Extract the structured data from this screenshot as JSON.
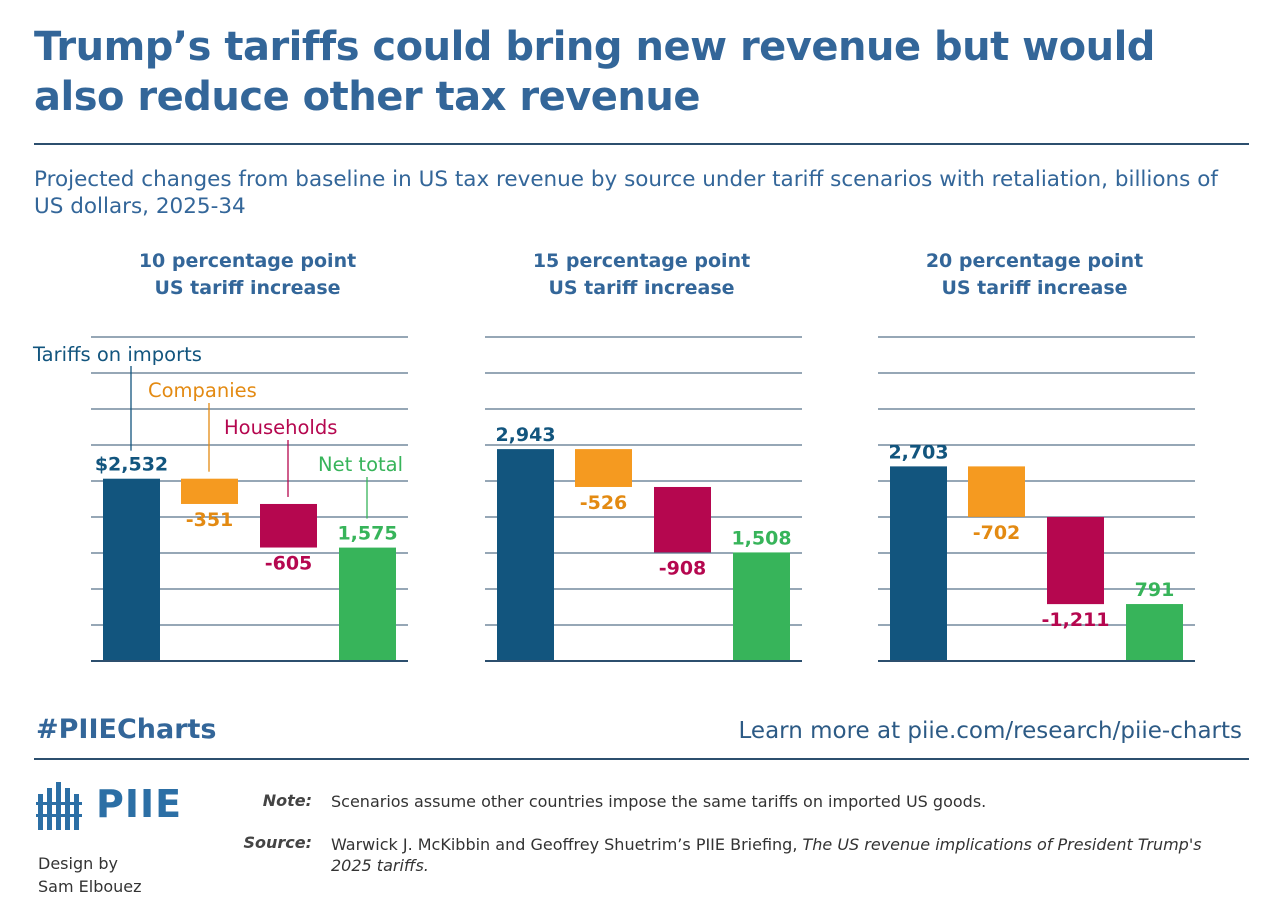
{
  "header": {
    "title": "Trump’s tariffs could bring new revenue but would also reduce other tax revenue",
    "subtitle": "Projected changes from baseline in US tax revenue by source under tariff scenarios with retaliation, billions of US dollars, 2025-34"
  },
  "colors": {
    "tariffs": "#12557e",
    "companies": "#f59a20",
    "households": "#b5074f",
    "net": "#37b45a",
    "gridline": "#2c4f6e",
    "title": "#336699"
  },
  "chart_data": [
    {
      "type": "waterfall",
      "title_line1": "10 percentage point",
      "title_line2": "US tariff increase",
      "categories": [
        "Tariffs on imports",
        "Companies",
        "Households",
        "Net total"
      ],
      "values": [
        2532,
        -351,
        -605,
        1575
      ],
      "labels": [
        "$2,532",
        "-351",
        "-605",
        "1,575"
      ],
      "ylim": [
        0,
        4500
      ],
      "gridlines": [
        500,
        1000,
        1500,
        2000,
        2500,
        3000,
        3500,
        4000,
        4500
      ]
    },
    {
      "type": "waterfall",
      "title_line1": "15 percentage point",
      "title_line2": "US tariff increase",
      "categories": [
        "Tariffs on imports",
        "Companies",
        "Households",
        "Net total"
      ],
      "values": [
        2943,
        -526,
        -908,
        1508
      ],
      "labels": [
        "2,943",
        "-526",
        "-908",
        "1,508"
      ],
      "ylim": [
        0,
        4500
      ],
      "gridlines": [
        500,
        1000,
        1500,
        2000,
        2500,
        3000,
        3500,
        4000,
        4500
      ]
    },
    {
      "type": "waterfall",
      "title_line1": "20 percentage point",
      "title_line2": "US tariff increase",
      "categories": [
        "Tariffs on imports",
        "Companies",
        "Households",
        "Net total"
      ],
      "values": [
        2703,
        -702,
        -1211,
        791
      ],
      "labels": [
        "2,703",
        "-702",
        "-1,211",
        "791"
      ],
      "ylim": [
        0,
        4500
      ],
      "gridlines": [
        500,
        1000,
        1500,
        2000,
        2500,
        3000,
        3500,
        4000,
        4500
      ]
    }
  ],
  "footer": {
    "hashtag": "#PIIECharts",
    "learn_more": "Learn more at piie.com/research/piie-charts",
    "logo_text": "PIIE",
    "credit_line1": "Design by",
    "credit_line2": "Sam Elbouez",
    "note_label": "Note:",
    "note_text": "Scenarios assume other countries impose the same tariffs on imported US goods.",
    "source_label": "Source:",
    "source_text_plain": "Warwick J. McKibbin and Geoffrey Shuetrim’s PIIE Briefing, ",
    "source_text_italic": "The US revenue implications of President Trump's 2025 tariffs."
  }
}
